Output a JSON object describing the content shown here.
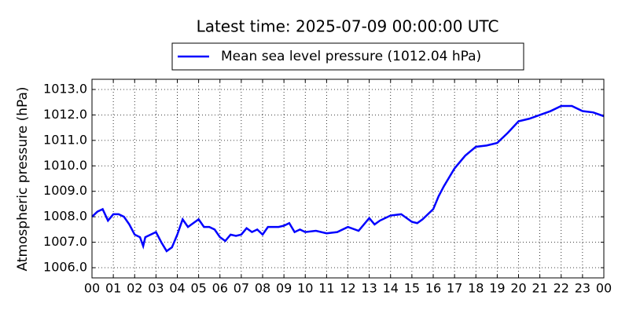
{
  "chart_data": {
    "type": "line",
    "title": "Latest time: 2025-07-09 00:00:00 UTC",
    "y_label": "Atmospheric pressure (hPa)",
    "x": [
      0,
      0.25,
      0.5,
      0.75,
      1,
      1.25,
      1.5,
      1.75,
      2,
      2.25,
      2.4,
      2.5,
      2.75,
      3,
      3.25,
      3.5,
      3.75,
      4,
      4.25,
      4.5,
      4.75,
      5,
      5.25,
      5.5,
      5.75,
      6,
      6.25,
      6.5,
      6.75,
      7,
      7.25,
      7.5,
      7.75,
      8,
      8.25,
      8.5,
      8.75,
      9,
      9.25,
      9.5,
      9.75,
      10,
      10.5,
      11,
      11.5,
      12,
      12.5,
      13,
      13.25,
      13.5,
      14,
      14.5,
      15,
      15.25,
      15.5,
      16,
      16.25,
      16.5,
      17,
      17.5,
      18,
      18.5,
      19,
      19.5,
      20,
      20.5,
      21,
      21.5,
      22,
      22.5,
      23,
      23.5,
      24
    ],
    "series": [
      {
        "name": "Mean sea level pressure (1012.04 hPa)",
        "color": "#0000ff",
        "values": [
          1008.0,
          1008.2,
          1008.3,
          1007.85,
          1008.1,
          1008.1,
          1008.0,
          1007.7,
          1007.3,
          1007.2,
          1006.85,
          1007.2,
          1007.3,
          1007.4,
          1007.0,
          1006.65,
          1006.8,
          1007.3,
          1007.9,
          1007.6,
          1007.75,
          1007.9,
          1007.6,
          1007.6,
          1007.5,
          1007.2,
          1007.05,
          1007.3,
          1007.25,
          1007.3,
          1007.55,
          1007.4,
          1007.5,
          1007.3,
          1007.6,
          1007.6,
          1007.6,
          1007.65,
          1007.75,
          1007.4,
          1007.5,
          1007.4,
          1007.45,
          1007.35,
          1007.4,
          1007.6,
          1007.45,
          1007.95,
          1007.7,
          1007.85,
          1008.05,
          1008.1,
          1007.8,
          1007.75,
          1007.9,
          1008.3,
          1008.8,
          1009.2,
          1009.9,
          1010.4,
          1010.75,
          1010.8,
          1010.9,
          1011.3,
          1011.75,
          1011.85,
          1012.0,
          1012.15,
          1012.35,
          1012.35,
          1012.15,
          1012.1,
          1011.95
        ]
      }
    ],
    "xlim": [
      0,
      24
    ],
    "xticks": [
      {
        "value": 0,
        "label": "00"
      },
      {
        "value": 1,
        "label": "01"
      },
      {
        "value": 2,
        "label": "02"
      },
      {
        "value": 3,
        "label": "03"
      },
      {
        "value": 4,
        "label": "04"
      },
      {
        "value": 5,
        "label": "05"
      },
      {
        "value": 6,
        "label": "06"
      },
      {
        "value": 7,
        "label": "07"
      },
      {
        "value": 8,
        "label": "08"
      },
      {
        "value": 9,
        "label": "09"
      },
      {
        "value": 10,
        "label": "10"
      },
      {
        "value": 11,
        "label": "11"
      },
      {
        "value": 12,
        "label": "12"
      },
      {
        "value": 13,
        "label": "13"
      },
      {
        "value": 14,
        "label": "14"
      },
      {
        "value": 15,
        "label": "15"
      },
      {
        "value": 16,
        "label": "16"
      },
      {
        "value": 17,
        "label": "17"
      },
      {
        "value": 18,
        "label": "18"
      },
      {
        "value": 19,
        "label": "19"
      },
      {
        "value": 20,
        "label": "20"
      },
      {
        "value": 21,
        "label": "21"
      },
      {
        "value": 22,
        "label": "22"
      },
      {
        "value": 23,
        "label": "23"
      },
      {
        "value": 24,
        "label": "00"
      }
    ],
    "ylim": [
      1005.6,
      1013.4
    ],
    "yticks": [
      {
        "value": 1006,
        "label": "1006.0"
      },
      {
        "value": 1007,
        "label": "1007.0"
      },
      {
        "value": 1008,
        "label": "1008.0"
      },
      {
        "value": 1009,
        "label": "1009.0"
      },
      {
        "value": 1010,
        "label": "1010.0"
      },
      {
        "value": 1011,
        "label": "1011.0"
      },
      {
        "value": 1012,
        "label": "1012.0"
      },
      {
        "value": 1013,
        "label": "1013.0"
      }
    ],
    "grid": true,
    "legend": "top"
  }
}
